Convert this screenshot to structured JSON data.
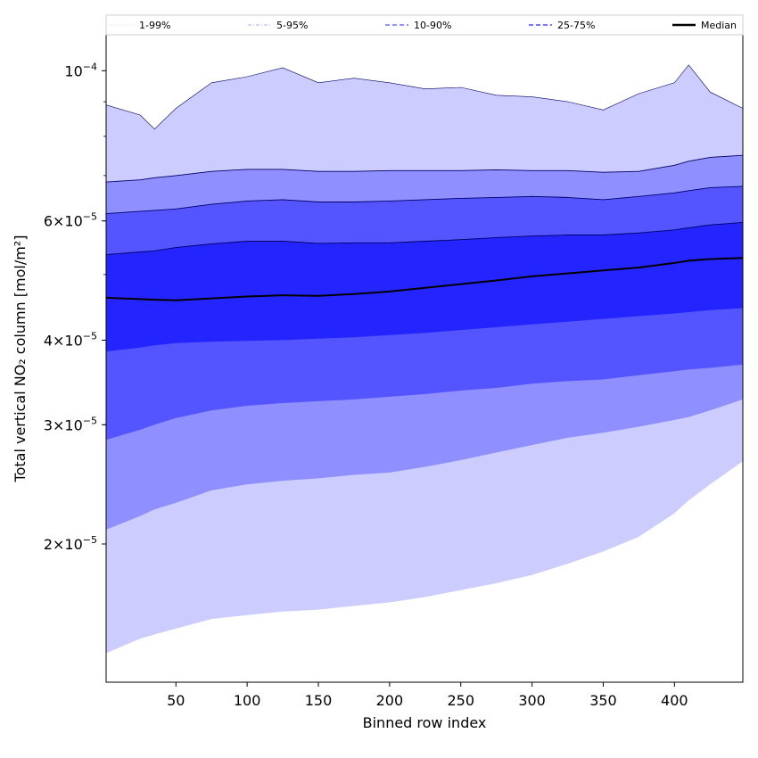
{
  "chart_data": {
    "type": "area",
    "title": "",
    "xlabel": "Binned row index",
    "ylabel": "Total vertical NO₂ column [mol/m²]",
    "yscale": "log",
    "xlim": [
      1,
      448
    ],
    "ylim": [
      1.25e-05,
      0.000113
    ],
    "x_ticks": [
      50,
      100,
      150,
      200,
      250,
      300,
      350,
      400
    ],
    "x_tick_labels": [
      "50",
      "100",
      "150",
      "200",
      "250",
      "300",
      "350",
      "400"
    ],
    "y_ticks": [
      {
        "value": 2e-05,
        "mantissa": "2",
        "exp": "−5"
      },
      {
        "value": 3e-05,
        "mantissa": "3",
        "exp": "−5"
      },
      {
        "value": 4e-05,
        "mantissa": "4",
        "exp": "−5"
      },
      {
        "value": 6e-05,
        "mantissa": "6",
        "exp": "−5"
      },
      {
        "value": 0.0001,
        "mantissa": "10",
        "exp": "−4"
      }
    ],
    "grid": false,
    "legend_position": "top",
    "x": [
      1,
      25,
      35,
      50,
      75,
      100,
      125,
      150,
      175,
      200,
      225,
      250,
      275,
      300,
      325,
      350,
      375,
      400,
      410,
      425,
      448
    ],
    "bands": [
      {
        "name": "1-99%",
        "color": "#ccccff",
        "lower": [
          1.38e-05,
          1.45e-05,
          1.47e-05,
          1.5e-05,
          1.55e-05,
          1.57e-05,
          1.59e-05,
          1.6e-05,
          1.62e-05,
          1.64e-05,
          1.67e-05,
          1.71e-05,
          1.75e-05,
          1.8e-05,
          1.87e-05,
          1.95e-05,
          2.05e-05,
          2.22e-05,
          2.32e-05,
          2.45e-05,
          2.65e-05
        ],
        "upper": [
          8.9e-05,
          8.6e-05,
          8.2e-05,
          8.8e-05,
          9.6e-05,
          9.8e-05,
          0.000101,
          9.6e-05,
          9.75e-05,
          9.6e-05,
          9.4e-05,
          9.45e-05,
          9.2e-05,
          9.15e-05,
          9e-05,
          8.75e-05,
          9.25e-05,
          9.6e-05,
          0.000102,
          9.3e-05,
          8.8e-05
        ]
      },
      {
        "name": "5-95%",
        "color": "#8f8fff",
        "lower": [
          2.1e-05,
          2.2e-05,
          2.25e-05,
          2.3e-05,
          2.4e-05,
          2.45e-05,
          2.48e-05,
          2.5e-05,
          2.53e-05,
          2.55e-05,
          2.6e-05,
          2.66e-05,
          2.73e-05,
          2.8e-05,
          2.87e-05,
          2.92e-05,
          2.98e-05,
          3.05e-05,
          3.08e-05,
          3.15e-05,
          3.27e-05
        ],
        "upper": [
          6.85e-05,
          6.9e-05,
          6.95e-05,
          7e-05,
          7.1e-05,
          7.15e-05,
          7.15e-05,
          7.1e-05,
          7.1e-05,
          7.12e-05,
          7.12e-05,
          7.12e-05,
          7.14e-05,
          7.12e-05,
          7.12e-05,
          7.08e-05,
          7.1e-05,
          7.25e-05,
          7.35e-05,
          7.45e-05,
          7.5e-05
        ]
      },
      {
        "name": "10-90%",
        "color": "#5555ff",
        "lower": [
          2.85e-05,
          2.95e-05,
          3e-05,
          3.07e-05,
          3.15e-05,
          3.2e-05,
          3.23e-05,
          3.25e-05,
          3.27e-05,
          3.3e-05,
          3.33e-05,
          3.37e-05,
          3.4e-05,
          3.45e-05,
          3.48e-05,
          3.5e-05,
          3.55e-05,
          3.6e-05,
          3.62e-05,
          3.64e-05,
          3.68e-05
        ],
        "upper": [
          6.15e-05,
          6.2e-05,
          6.22e-05,
          6.25e-05,
          6.35e-05,
          6.42e-05,
          6.45e-05,
          6.4e-05,
          6.4e-05,
          6.42e-05,
          6.45e-05,
          6.48e-05,
          6.5e-05,
          6.52e-05,
          6.5e-05,
          6.45e-05,
          6.52e-05,
          6.6e-05,
          6.65e-05,
          6.72e-05,
          6.75e-05
        ]
      },
      {
        "name": "25-75%",
        "color": "#2424ff",
        "lower": [
          3.85e-05,
          3.9e-05,
          3.93e-05,
          3.96e-05,
          3.98e-05,
          3.99e-05,
          4e-05,
          4.02e-05,
          4.04e-05,
          4.07e-05,
          4.1e-05,
          4.14e-05,
          4.18e-05,
          4.22e-05,
          4.26e-05,
          4.3e-05,
          4.34e-05,
          4.38e-05,
          4.4e-05,
          4.43e-05,
          4.46e-05
        ],
        "upper": [
          5.35e-05,
          5.4e-05,
          5.42e-05,
          5.48e-05,
          5.55e-05,
          5.6e-05,
          5.6e-05,
          5.56e-05,
          5.57e-05,
          5.57e-05,
          5.6e-05,
          5.63e-05,
          5.67e-05,
          5.7e-05,
          5.72e-05,
          5.72e-05,
          5.76e-05,
          5.82e-05,
          5.86e-05,
          5.92e-05,
          5.97e-05
        ]
      }
    ],
    "median": {
      "name": "Median",
      "color": "#000000",
      "values": [
        4.62e-05,
        4.6e-05,
        4.59e-05,
        4.58e-05,
        4.61e-05,
        4.64e-05,
        4.66e-05,
        4.65e-05,
        4.68e-05,
        4.72e-05,
        4.78e-05,
        4.84e-05,
        4.9e-05,
        4.97e-05,
        5.02e-05,
        5.07e-05,
        5.12e-05,
        5.2e-05,
        5.24e-05,
        5.27e-05,
        5.29e-05
      ]
    },
    "legend": [
      {
        "label": "1-99%",
        "color": "#ccccff",
        "style": "dotted-thin"
      },
      {
        "label": "5-95%",
        "color": "#8f8fff",
        "style": "dashdot-thin"
      },
      {
        "label": "10-90%",
        "color": "#5555ff",
        "style": "dashed"
      },
      {
        "label": "25-75%",
        "color": "#2424ff",
        "style": "dashed"
      },
      {
        "label": "Median",
        "color": "#000000",
        "style": "solid-bold"
      }
    ]
  }
}
